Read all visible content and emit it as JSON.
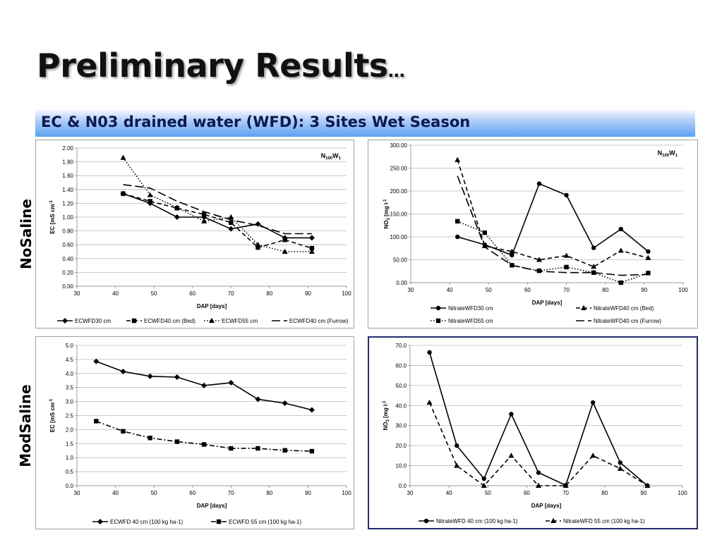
{
  "slide": {
    "title": "Preliminary Results",
    "title_suffix": "…",
    "banner": "EC & N03 drained water (WFD): 3 Sites Wet Season",
    "row_labels": [
      "NoSaline",
      "ModSaline"
    ]
  },
  "chart_data": [
    {
      "type": "line",
      "xlabel": "DAP [days]",
      "ylabel": "EC [mS cm⁻¹]",
      "xlim": [
        30,
        100
      ],
      "ylim": [
        0,
        2
      ],
      "xticks": [
        30,
        40,
        50,
        60,
        70,
        80,
        90,
        100
      ],
      "yticks": [
        0,
        0.2,
        0.4,
        0.6,
        0.8,
        1.0,
        1.2,
        1.4,
        1.6,
        1.8,
        2.0
      ],
      "ydecimals": 2,
      "annotation": "N100W1",
      "grid": true,
      "legend_position": "bottom",
      "series": [
        {
          "name": "ECWFD30 cm",
          "x": [
            42,
            49,
            56,
            63,
            70,
            77,
            84,
            91
          ],
          "y": [
            1.34,
            1.2,
            1.0,
            1.0,
            0.83,
            0.9,
            0.7,
            0.7
          ],
          "dash": "solid",
          "marker": "diamond"
        },
        {
          "name": "ECWFD40 cm (Bed)",
          "x": [
            42,
            49,
            56,
            63,
            70,
            77,
            84,
            91
          ],
          "y": [
            1.34,
            1.23,
            1.13,
            1.04,
            0.92,
            0.56,
            0.67,
            0.55
          ],
          "dash": "dash",
          "marker": "square"
        },
        {
          "name": "ECWFD55 cm",
          "x": [
            42,
            49,
            56,
            63,
            70,
            77,
            84,
            91
          ],
          "y": [
            1.86,
            1.32,
            1.14,
            0.94,
            1.0,
            0.6,
            0.5,
            0.5
          ],
          "dash": "dot",
          "marker": "triangle"
        },
        {
          "name": "ECWFD40 cm (Furrow)",
          "x": [
            42,
            49,
            56,
            63,
            70,
            77,
            84,
            91
          ],
          "y": [
            1.47,
            1.42,
            1.23,
            1.08,
            0.96,
            0.88,
            0.76,
            0.76
          ],
          "dash": "longdash",
          "marker": "none"
        }
      ],
      "legend_layout": [
        [
          0,
          1,
          2,
          3
        ]
      ]
    },
    {
      "type": "line",
      "xlabel": "DAP [days]",
      "ylabel": "NO₃ [mg l⁻¹]",
      "xlim": [
        30,
        100
      ],
      "ylim": [
        0,
        300
      ],
      "xticks": [
        30,
        40,
        50,
        60,
        70,
        80,
        90,
        100
      ],
      "yticks": [
        0,
        50,
        100,
        150,
        200,
        250,
        300
      ],
      "ydecimals": 2,
      "annotation": "N100W1",
      "grid": true,
      "legend_position": "bottom",
      "series": [
        {
          "name": "NitrateWFD30 cm",
          "x": [
            42,
            49,
            56,
            63,
            70,
            77,
            84,
            91
          ],
          "y": [
            100,
            83,
            60,
            216,
            191,
            76,
            117,
            68
          ],
          "dash": "solid",
          "marker": "circle"
        },
        {
          "name": "NitrateWFD40 cm (Bed)",
          "x": [
            42,
            49,
            56,
            63,
            70,
            77,
            84,
            91
          ],
          "y": [
            268,
            80,
            68,
            50,
            59,
            35,
            70,
            54
          ],
          "dash": "dash",
          "marker": "triangle"
        },
        {
          "name": "NitrateWFD55 cm",
          "x": [
            42,
            49,
            56,
            63,
            70,
            77,
            84,
            91
          ],
          "y": [
            134,
            109,
            38,
            26,
            34,
            22,
            0,
            21
          ],
          "dash": "dot",
          "marker": "square"
        },
        {
          "name": "NitrateWFD40 cm (Furrow)",
          "x": [
            42,
            49,
            56,
            63,
            70,
            77,
            84,
            91
          ],
          "y": [
            233,
            78,
            38,
            25,
            22,
            22,
            16,
            18
          ],
          "dash": "longdash",
          "marker": "none"
        }
      ],
      "legend_layout": [
        [
          0,
          1
        ],
        [
          2,
          3
        ]
      ]
    },
    {
      "type": "line",
      "xlabel": "DAP [days]",
      "ylabel": "EC [mS cm⁻¹]",
      "xlim": [
        30,
        100
      ],
      "ylim": [
        0,
        5
      ],
      "xticks": [
        30,
        40,
        50,
        60,
        70,
        80,
        90,
        100
      ],
      "yticks": [
        0,
        0.5,
        1.0,
        1.5,
        2.0,
        2.5,
        3.0,
        3.5,
        4.0,
        4.5,
        5.0
      ],
      "ydecimals": 1,
      "annotation": "",
      "grid": true,
      "legend_position": "bottom",
      "series": [
        {
          "name": "ECWFD 40 cm (100 kg ha-1)",
          "x": [
            35,
            42,
            49,
            56,
            63,
            70,
            77,
            84,
            91
          ],
          "y": [
            4.43,
            4.07,
            3.9,
            3.87,
            3.57,
            3.67,
            3.08,
            2.94,
            2.7
          ],
          "dash": "solid",
          "marker": "diamond"
        },
        {
          "name": "ECWFD 55 cm (100 kg ha-1)",
          "x": [
            35,
            42,
            49,
            56,
            63,
            70,
            77,
            84,
            91
          ],
          "y": [
            2.3,
            1.94,
            1.7,
            1.57,
            1.47,
            1.33,
            1.33,
            1.26,
            1.23
          ],
          "dash": "dashdot",
          "marker": "square"
        }
      ],
      "legend_layout": [
        [
          0,
          1
        ]
      ]
    },
    {
      "type": "line",
      "xlabel": "DAP [days]",
      "ylabel": "NO₃ [mg l⁻¹]",
      "xlim": [
        30,
        100
      ],
      "ylim": [
        0,
        70
      ],
      "xticks": [
        30,
        40,
        50,
        60,
        70,
        80,
        90,
        100
      ],
      "yticks": [
        0,
        10,
        20,
        30,
        40,
        50,
        60,
        70
      ],
      "ydecimals": 1,
      "annotation": "",
      "grid": true,
      "legend_position": "bottom",
      "series": [
        {
          "name": "NitrateWFD 40 cm (100 kg ha-1)",
          "x": [
            35,
            42,
            49,
            56,
            63,
            70,
            77,
            84,
            91
          ],
          "y": [
            66.5,
            20.0,
            3.5,
            35.7,
            6.5,
            0.2,
            41.5,
            11.5,
            0.0
          ],
          "dash": "solid",
          "marker": "circle"
        },
        {
          "name": "NitrateWFD 55 cm (100 kg ha-1)",
          "x": [
            35,
            42,
            49,
            56,
            63,
            70,
            77,
            84,
            91
          ],
          "y": [
            41.5,
            10.0,
            0.0,
            15.0,
            0.0,
            0.0,
            15.0,
            8.5,
            0.0
          ],
          "dash": "dash",
          "marker": "triangle"
        }
      ],
      "legend_layout": [
        [
          0,
          1
        ]
      ]
    }
  ]
}
